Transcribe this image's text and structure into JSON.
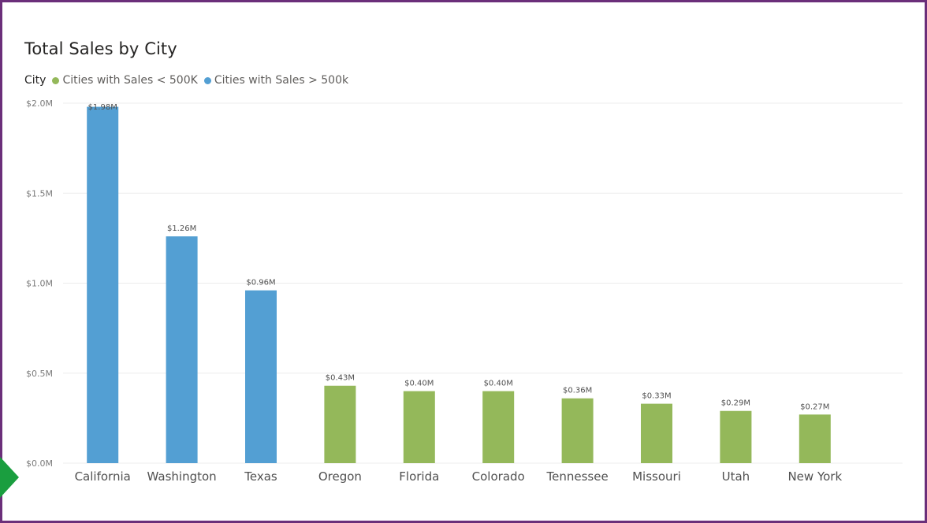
{
  "chart_data": {
    "type": "bar",
    "title": "Total Sales by City",
    "legend": {
      "title": "City",
      "placement": "top-left",
      "entries": [
        {
          "name": "Cities with Sales < 500K",
          "color": "#94b85a"
        },
        {
          "name": "Cities with Sales > 500k",
          "color": "#539fd3"
        }
      ]
    },
    "categories": [
      "California",
      "Washington",
      "Texas",
      "Oregon",
      "Florida",
      "Colorado",
      "Tennessee",
      "Missouri",
      "Utah",
      "New York"
    ],
    "values": [
      1.98,
      1.26,
      0.96,
      0.43,
      0.4,
      0.4,
      0.36,
      0.33,
      0.29,
      0.27
    ],
    "value_unit": "M",
    "data_labels": [
      "$1.98M",
      "$1.26M",
      "$0.96M",
      "$0.43M",
      "$0.40M",
      "$0.40M",
      "$0.36M",
      "$0.33M",
      "$0.29M",
      "$0.27M"
    ],
    "series_of_category": [
      1,
      1,
      1,
      0,
      0,
      0,
      0,
      0,
      0,
      0
    ],
    "ylim": [
      0,
      2.0
    ],
    "yticks": [
      0,
      0.5,
      1.0,
      1.5,
      2.0
    ],
    "ytick_labels": [
      "$0.0M",
      "$0.5M",
      "$1.0M",
      "$1.5M",
      "$2.0M"
    ],
    "xlabel": "",
    "ylabel": "",
    "grid": true
  }
}
